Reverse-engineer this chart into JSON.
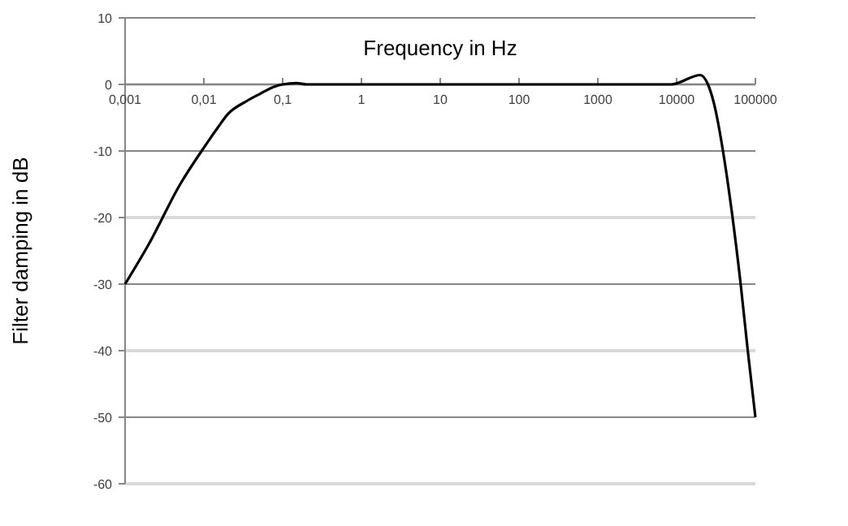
{
  "chart_data": {
    "type": "line",
    "xlabel": "Frequency in Hz",
    "ylabel": "Filter damping in dB",
    "log": "x",
    "x": [
      0.001,
      0.002,
      0.005,
      0.01,
      0.015,
      0.02,
      0.035,
      0.05,
      0.08,
      0.1,
      0.15,
      0.2,
      1,
      10,
      100,
      1000,
      8500,
      20000,
      25000,
      30000,
      40000,
      50000,
      65000,
      80000,
      100000
    ],
    "series": [
      {
        "color": "#000000",
        "values": [
          -30,
          -24,
          -15,
          -9.5,
          -6.5,
          -4.5,
          -2.5,
          -1.5,
          -0.3,
          0,
          0.2,
          0,
          0,
          0,
          0,
          0,
          0,
          1.4,
          0,
          -3,
          -11,
          -19,
          -30,
          -40,
          -50
        ]
      }
    ],
    "xlim": [
      0.001,
      100000
    ],
    "ylim": [
      -60,
      10
    ],
    "xticks": [
      {
        "value": 0.001,
        "label": "0,001"
      },
      {
        "value": 0.01,
        "label": "0,01"
      },
      {
        "value": 0.1,
        "label": "0,1"
      },
      1,
      10,
      100,
      1000,
      10000,
      100000
    ],
    "yticks": [
      -60,
      -50,
      -40,
      -30,
      -20,
      -10,
      0,
      10
    ],
    "grid": "y",
    "marker": "none",
    "line_style": "solid"
  }
}
